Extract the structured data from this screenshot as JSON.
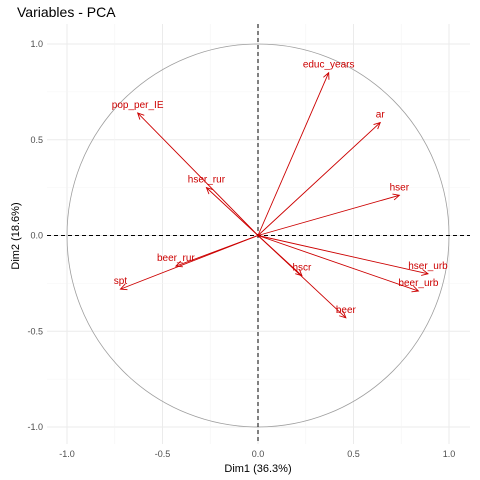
{
  "chart_data": {
    "type": "scatter",
    "title": "Variables - PCA",
    "xlabel": "Dim1 (36.3%)",
    "ylabel": "Dim2 (18.6%)",
    "xlim": [
      -1.1,
      1.1
    ],
    "ylim": [
      -1.1,
      1.1
    ],
    "x_ticks": [
      "-1.0",
      "-0.5",
      "0.0",
      "0.5",
      "1.0"
    ],
    "y_ticks": [
      "-1.0",
      "-0.5",
      "0.0",
      "0.5",
      "1.0"
    ],
    "grid": true,
    "correlation_circle": true,
    "color": "#cc0000",
    "variables": [
      {
        "label": "educ_years",
        "x": 0.37,
        "y": 0.85
      },
      {
        "label": "ar",
        "x": 0.64,
        "y": 0.59
      },
      {
        "label": "pop_per_IE",
        "x": -0.63,
        "y": 0.64
      },
      {
        "label": "hser_rur",
        "x": -0.27,
        "y": 0.25
      },
      {
        "label": "hser",
        "x": 0.74,
        "y": 0.21
      },
      {
        "label": "beer_rur",
        "x": -0.43,
        "y": -0.16
      },
      {
        "label": "spt",
        "x": -0.72,
        "y": -0.28
      },
      {
        "label": "hscr",
        "x": 0.23,
        "y": -0.21
      },
      {
        "label": "beer",
        "x": 0.46,
        "y": -0.43
      },
      {
        "label": "hser_urb",
        "x": 0.89,
        "y": -0.2
      },
      {
        "label": "beer_urb",
        "x": 0.84,
        "y": -0.29
      }
    ]
  }
}
